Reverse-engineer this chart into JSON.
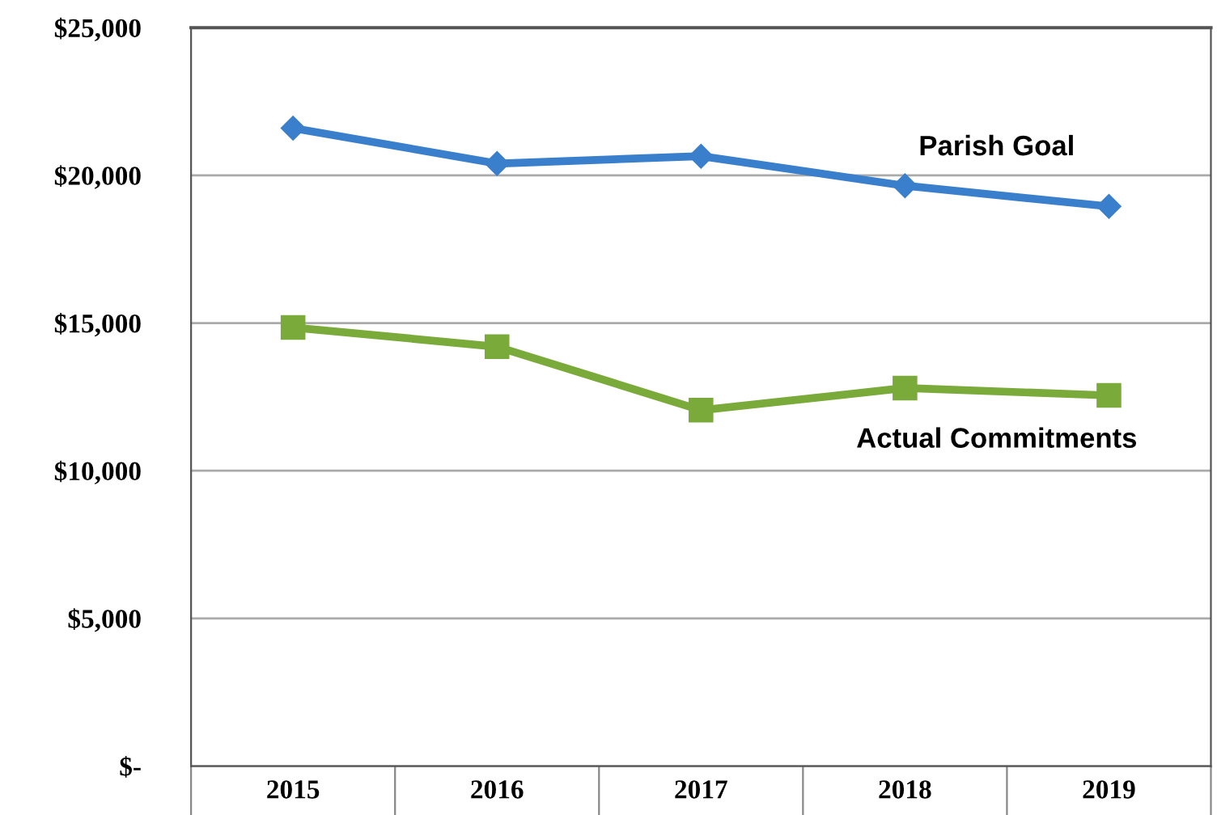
{
  "chart_data": {
    "type": "line",
    "categories": [
      "2015",
      "2016",
      "2017",
      "2018",
      "2019"
    ],
    "series": [
      {
        "name": "Parish Goal",
        "color": "#3a7fcc",
        "marker": "diamond",
        "values": [
          21600,
          20400,
          20650,
          19650,
          18950
        ]
      },
      {
        "name": "Actual Commitments",
        "color": "#7aab3a",
        "marker": "square",
        "values": [
          14850,
          14200,
          12050,
          12800,
          12550
        ]
      }
    ],
    "ylim": [
      0,
      25000
    ],
    "yticks": [
      {
        "value": 0,
        "label": "$-"
      },
      {
        "value": 5000,
        "label": "$5,000"
      },
      {
        "value": 10000,
        "label": "$10,000"
      },
      {
        "value": 15000,
        "label": "$15,000"
      },
      {
        "value": 20000,
        "label": "$20,000"
      },
      {
        "value": 25000,
        "label": "$25,000"
      }
    ],
    "grid": "y",
    "legend": false,
    "line_style": "solid"
  }
}
